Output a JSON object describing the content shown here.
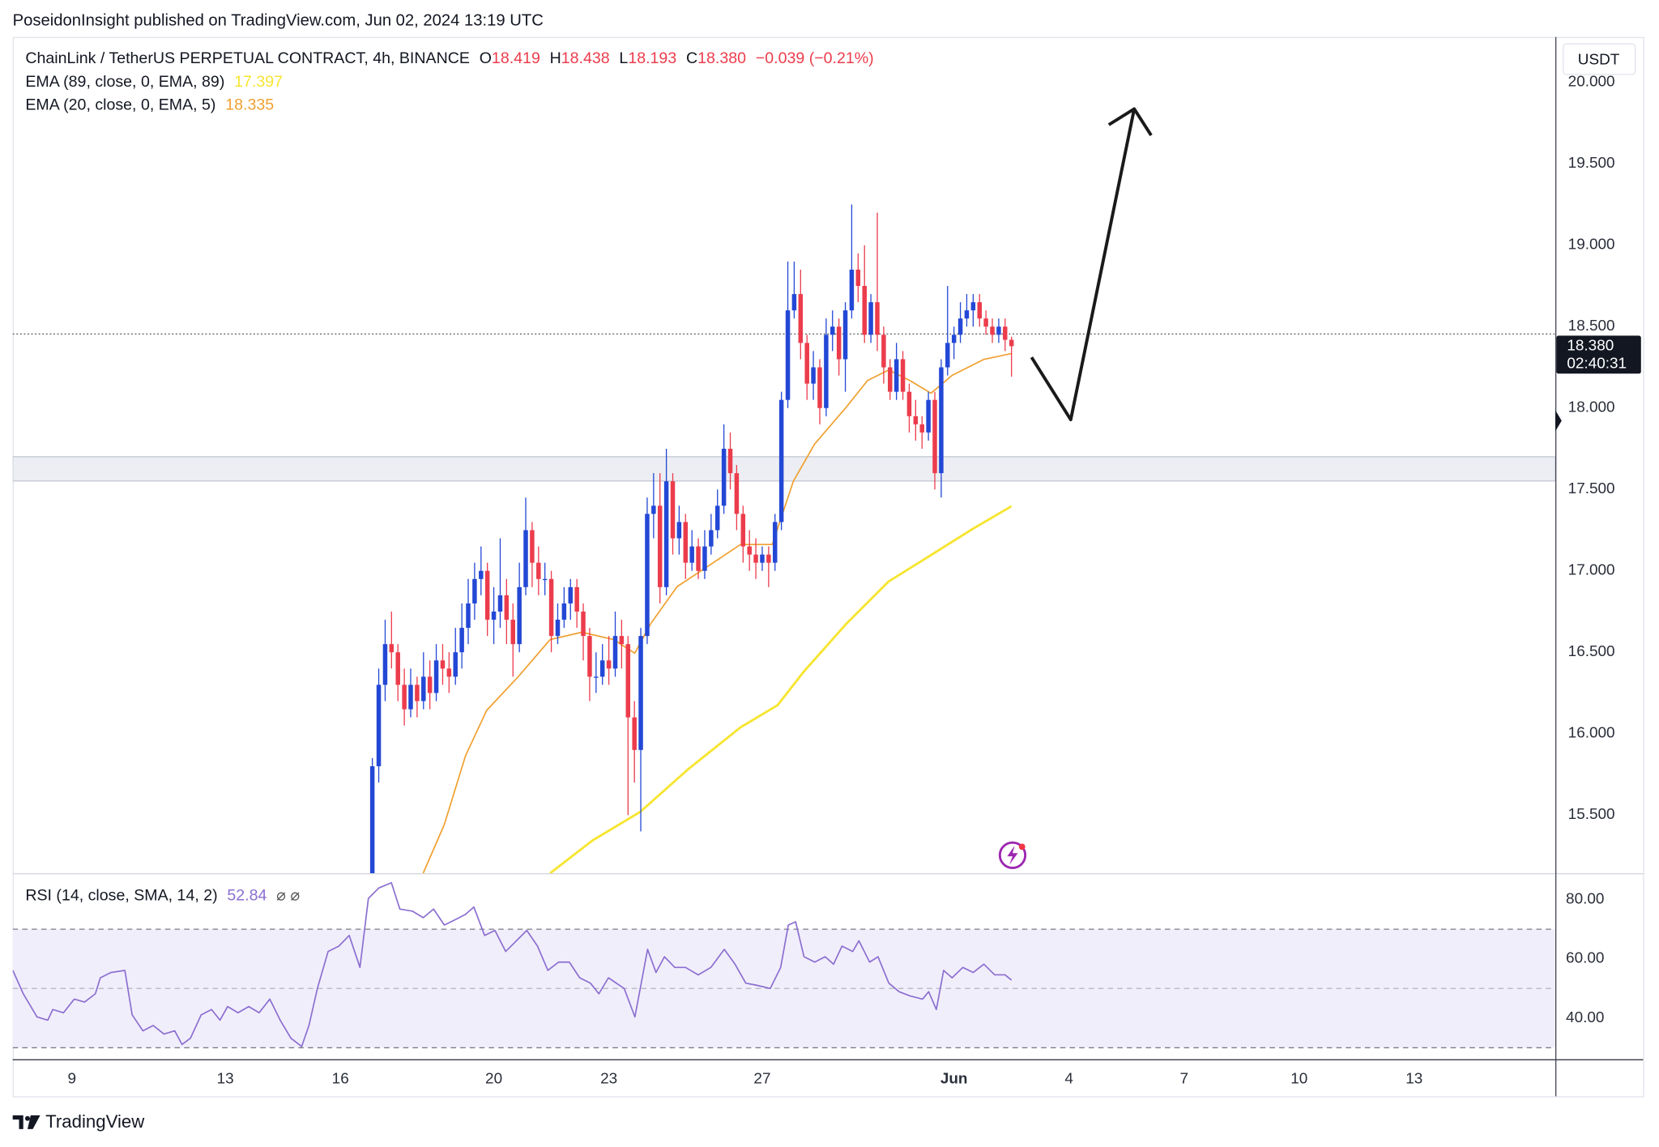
{
  "header": "PoseidonInsight published on TradingView.com, Jun 02, 2024 13:19 UTC",
  "footer": "TradingView",
  "chart_data": {
    "type": "candlestick",
    "title": "ChainLink / TetherUS PERPETUAL CONTRACT, 4h, BINANCE",
    "ohlc_letters": [
      "O",
      "H",
      "L",
      "C"
    ],
    "ohlc_labels": [
      "18.419",
      "18.438",
      "18.193",
      "18.380"
    ],
    "change": "−0.039 (−0.21%)",
    "up_color": "#2348d6",
    "down_color": "#ec3c4c",
    "x": [
      16.833,
      17,
      17.167,
      17.333,
      17.5,
      17.667,
      17.833,
      18,
      18.167,
      18.333,
      18.5,
      18.667,
      18.833,
      19,
      19.167,
      19.333,
      19.5,
      19.667,
      19.833,
      20,
      20.167,
      20.333,
      20.5,
      20.667,
      20.833,
      21,
      21.167,
      21.333,
      21.5,
      21.667,
      21.833,
      22,
      22.167,
      22.333,
      22.5,
      22.667,
      22.833,
      23,
      23.167,
      23.333,
      23.5,
      23.667,
      23.833,
      24,
      24.167,
      24.333,
      24.5,
      24.667,
      24.833,
      25,
      25.167,
      25.333,
      25.5,
      25.667,
      25.833,
      26,
      26.167,
      26.333,
      26.5,
      26.667,
      26.833,
      27,
      27.167,
      27.333,
      27.5,
      27.667,
      27.833,
      28,
      28.167,
      28.333,
      28.5,
      28.667,
      28.833,
      29,
      29.167,
      29.333,
      29.5,
      29.667,
      29.833,
      30,
      30.167,
      30.333,
      30.5,
      30.667,
      30.833,
      31,
      31.167,
      31.333,
      31.5,
      31.667,
      31.833,
      32,
      32.167,
      32.333,
      32.5,
      32.667,
      32.833,
      33,
      33.167,
      33.333,
      33.5
    ],
    "candles": [
      [
        15.1,
        15.85,
        15.05,
        15.8
      ],
      [
        15.8,
        16.4,
        15.7,
        16.3
      ],
      [
        16.3,
        16.7,
        16.2,
        16.55
      ],
      [
        16.55,
        16.75,
        16.4,
        16.5
      ],
      [
        16.5,
        16.55,
        16.2,
        16.3
      ],
      [
        16.3,
        16.4,
        16.05,
        16.15
      ],
      [
        16.15,
        16.4,
        16.1,
        16.3
      ],
      [
        16.3,
        16.35,
        16.1,
        16.2
      ],
      [
        16.2,
        16.5,
        16.15,
        16.35
      ],
      [
        16.35,
        16.45,
        16.15,
        16.25
      ],
      [
        16.25,
        16.55,
        16.2,
        16.45
      ],
      [
        16.45,
        16.55,
        16.3,
        16.4
      ],
      [
        16.4,
        16.5,
        16.25,
        16.35
      ],
      [
        16.35,
        16.65,
        16.3,
        16.5
      ],
      [
        16.5,
        16.8,
        16.4,
        16.65
      ],
      [
        16.65,
        16.95,
        16.55,
        16.8
      ],
      [
        16.8,
        17.05,
        16.7,
        16.95
      ],
      [
        16.95,
        17.15,
        16.85,
        17
      ],
      [
        17,
        17.05,
        16.6,
        16.7
      ],
      [
        16.7,
        16.9,
        16.55,
        16.75
      ],
      [
        16.75,
        17.2,
        16.65,
        16.85
      ],
      [
        16.85,
        16.95,
        16.55,
        16.7
      ],
      [
        16.7,
        16.8,
        16.35,
        16.55
      ],
      [
        16.55,
        17.05,
        16.5,
        16.9
      ],
      [
        16.9,
        17.45,
        16.85,
        17.25
      ],
      [
        17.25,
        17.3,
        16.9,
        17.05
      ],
      [
        17.05,
        17.15,
        16.85,
        16.95
      ],
      [
        16.95,
        17.05,
        16.85,
        16.95
      ],
      [
        16.95,
        17,
        16.5,
        16.6
      ],
      [
        16.6,
        16.8,
        16.55,
        16.7
      ],
      [
        16.7,
        16.9,
        16.65,
        16.8
      ],
      [
        16.8,
        16.95,
        16.7,
        16.9
      ],
      [
        16.9,
        16.95,
        16.65,
        16.75
      ],
      [
        16.75,
        16.8,
        16.45,
        16.6
      ],
      [
        16.6,
        16.65,
        16.2,
        16.35
      ],
      [
        16.35,
        16.5,
        16.25,
        16.35
      ],
      [
        16.35,
        16.55,
        16.3,
        16.45
      ],
      [
        16.45,
        16.6,
        16.3,
        16.4
      ],
      [
        16.4,
        16.75,
        16.35,
        16.6
      ],
      [
        16.6,
        16.7,
        16.4,
        16.55
      ],
      [
        16.55,
        16.6,
        15.5,
        16.1
      ],
      [
        16.1,
        16.2,
        15.7,
        15.9
      ],
      [
        15.9,
        16.65,
        15.4,
        16.6
      ],
      [
        16.6,
        17.45,
        16.55,
        17.35
      ],
      [
        17.35,
        17.6,
        17.2,
        17.4
      ],
      [
        17.4,
        17.6,
        16.8,
        16.9
      ],
      [
        16.9,
        17.75,
        16.85,
        17.55
      ],
      [
        17.55,
        17.6,
        17.1,
        17.2
      ],
      [
        17.2,
        17.4,
        17.1,
        17.3
      ],
      [
        17.3,
        17.35,
        16.95,
        17.05
      ],
      [
        17.05,
        17.25,
        17,
        17.15
      ],
      [
        17.15,
        17.2,
        16.95,
        17
      ],
      [
        17,
        17.25,
        16.95,
        17.15
      ],
      [
        17.15,
        17.35,
        17.1,
        17.25
      ],
      [
        17.25,
        17.5,
        17.2,
        17.4
      ],
      [
        17.4,
        17.9,
        17.35,
        17.75
      ],
      [
        17.75,
        17.85,
        17.5,
        17.6
      ],
      [
        17.6,
        17.65,
        17.25,
        17.35
      ],
      [
        17.35,
        17.4,
        17.05,
        17.15
      ],
      [
        17.15,
        17.25,
        17,
        17.1
      ],
      [
        17.1,
        17.2,
        16.95,
        17.05
      ],
      [
        17.05,
        17.15,
        17,
        17.1
      ],
      [
        17.1,
        17.15,
        16.9,
        17.05
      ],
      [
        17.05,
        17.35,
        17,
        17.3
      ],
      [
        17.3,
        18.1,
        17.25,
        18.05
      ],
      [
        18.05,
        18.9,
        18,
        18.6
      ],
      [
        18.6,
        18.9,
        18.55,
        18.7
      ],
      [
        18.7,
        18.85,
        18.3,
        18.4
      ],
      [
        18.4,
        18.45,
        18.05,
        18.15
      ],
      [
        18.15,
        18.35,
        18.05,
        18.25
      ],
      [
        18.25,
        18.3,
        17.9,
        18
      ],
      [
        18,
        18.55,
        17.95,
        18.45
      ],
      [
        18.45,
        18.6,
        18.35,
        18.5
      ],
      [
        18.5,
        18.55,
        18.2,
        18.3
      ],
      [
        18.3,
        18.65,
        18.1,
        18.6
      ],
      [
        18.6,
        19.25,
        18.55,
        18.85
      ],
      [
        18.85,
        18.95,
        18.65,
        18.75
      ],
      [
        18.75,
        19,
        18.4,
        18.45
      ],
      [
        18.45,
        18.7,
        18.4,
        18.65
      ],
      [
        18.65,
        19.2,
        18.35,
        18.45
      ],
      [
        18.45,
        18.5,
        18.15,
        18.25
      ],
      [
        18.25,
        18.3,
        18.05,
        18.1
      ],
      [
        18.1,
        18.4,
        18.05,
        18.3
      ],
      [
        18.3,
        18.35,
        18.05,
        18.1
      ],
      [
        18.1,
        18.15,
        17.85,
        17.95
      ],
      [
        17.95,
        18.05,
        17.8,
        17.9
      ],
      [
        17.9,
        17.95,
        17.75,
        17.85
      ],
      [
        17.85,
        18.1,
        17.8,
        18.05
      ],
      [
        18.05,
        18.1,
        17.5,
        17.6
      ],
      [
        17.6,
        18.3,
        17.45,
        18.25
      ],
      [
        18.25,
        18.75,
        18.2,
        18.4
      ],
      [
        18.4,
        18.5,
        18.3,
        18.45
      ],
      [
        18.45,
        18.65,
        18.4,
        18.55
      ],
      [
        18.55,
        18.7,
        18.5,
        18.6
      ],
      [
        18.6,
        18.7,
        18.5,
        18.65
      ],
      [
        18.65,
        18.7,
        18.5,
        18.55
      ],
      [
        18.55,
        18.6,
        18.45,
        18.5
      ],
      [
        18.5,
        18.55,
        18.4,
        18.45
      ],
      [
        18.45,
        18.55,
        18.4,
        18.5
      ],
      [
        18.5,
        18.55,
        18.35,
        18.419
      ],
      [
        18.419,
        18.438,
        18.193,
        18.38
      ]
    ],
    "series": [
      {
        "name": "EMA (89, close, 0, EMA, 89)",
        "color": "#f7e531",
        "x": [
          21.469,
          22.572,
          23.814,
          25.055,
          26.434,
          27.4,
          28.09,
          29.193,
          30.297,
          31.4,
          32.503,
          33.5
        ],
        "values": [
          15.143,
          15.344,
          15.519,
          15.779,
          16.039,
          16.175,
          16.383,
          16.675,
          16.935,
          17.097,
          17.26,
          17.397
        ]
      },
      {
        "name": "EMA (20, close, 0, EMA, 5)",
        "color": "#f0a030",
        "x": [
          18.159,
          18.71,
          19.262,
          19.814,
          20.641,
          21.469,
          22.297,
          23.124,
          23.676,
          24.09,
          24.779,
          25.607,
          26.434,
          27.262,
          27.814,
          28.366,
          29.193,
          29.745,
          30.297,
          30.848,
          31.4,
          31.952,
          32.779,
          33.5
        ],
        "values": [
          15.143,
          15.442,
          15.864,
          16.143,
          16.351,
          16.578,
          16.623,
          16.578,
          16.494,
          16.675,
          16.903,
          17.032,
          17.162,
          17.162,
          17.552,
          17.779,
          18.006,
          18.169,
          18.234,
          18.169,
          18.091,
          18.201,
          18.299,
          18.335
        ]
      }
    ],
    "xlim": [
      7.455,
      47.68
    ],
    "xticks": [
      9,
      13,
      16,
      20,
      23,
      27,
      {
        "value": 32,
        "label": "Jun"
      },
      {
        "value": 35,
        "label": "4"
      },
      {
        "value": 38,
        "label": "7"
      },
      {
        "value": 41,
        "label": "10"
      },
      {
        "value": 44,
        "label": "13"
      }
    ],
    "ylim": [
      15.143,
      20.279
    ],
    "yticks": [
      {
        "value": 15.5,
        "label": "15.500"
      },
      {
        "value": 16,
        "label": "16.000"
      },
      {
        "value": 16.5,
        "label": "16.500"
      },
      {
        "value": 17,
        "label": "17.000"
      },
      {
        "value": 17.5,
        "label": "17.500"
      },
      {
        "value": 18,
        "label": "18.000"
      },
      {
        "value": 18.5,
        "label": "18.500"
      },
      {
        "value": 19,
        "label": "19.000"
      },
      {
        "value": 19.5,
        "label": "19.500"
      },
      {
        "value": 20,
        "label": "20.000"
      }
    ],
    "grid": false,
    "zone": [
      17.552,
      17.701
    ],
    "price_line": 18.455,
    "y_unit": "USDT",
    "countdown": "02:40:31",
    "rsi": {
      "name": "RSI (14, close, SMA, 14, 2)",
      "color": "#8b6fd0",
      "flags": "⌀ ⌀",
      "ylim": [
        26.1,
        88.2
      ],
      "yticks": [
        {
          "value": 40,
          "label": "40.00"
        },
        {
          "value": 60,
          "label": "60.00"
        },
        {
          "value": 80,
          "label": "80.00"
        }
      ],
      "bands": [
        30,
        50,
        70
      ],
      "x": [
        7.46,
        7.73,
        8.09,
        8.37,
        8.5,
        8.78,
        9.06,
        9.33,
        9.61,
        9.74,
        10.02,
        10.38,
        10.57,
        10.85,
        11.12,
        11.4,
        11.68,
        11.87,
        12.09,
        12.37,
        12.64,
        12.86,
        13.06,
        13.33,
        13.61,
        13.88,
        14.16,
        14.43,
        14.71,
        14.99,
        15.18,
        15.4,
        15.68,
        15.96,
        16.23,
        16.51,
        16.73,
        17,
        17.33,
        17.55,
        17.88,
        18.16,
        18.43,
        18.71,
        18.99,
        19.26,
        19.48,
        19.76,
        20.03,
        20.31,
        20.59,
        20.86,
        21.14,
        21.41,
        21.69,
        21.97,
        22.24,
        22.52,
        22.74,
        22.99,
        23.4,
        23.68,
        24.01,
        24.23,
        24.45,
        24.72,
        25,
        25.33,
        25.66,
        26.01,
        26.29,
        26.57,
        26.85,
        27.21,
        27.48,
        27.68,
        27.87,
        28.09,
        28.37,
        28.64,
        28.86,
        29.08,
        29.36,
        29.52,
        29.8,
        30.02,
        30.3,
        30.57,
        30.85,
        31.18,
        31.34,
        31.54,
        31.73,
        31.95,
        32.23,
        32.5,
        32.78,
        33.06,
        33.33,
        33.5
      ],
      "values": [
        56.1,
        48.2,
        40.4,
        39.3,
        42.9,
        41.8,
        46.4,
        45.4,
        48.2,
        53.6,
        55.4,
        56.1,
        41.1,
        35.7,
        37.5,
        34.6,
        35.7,
        31.1,
        33.2,
        41.1,
        42.9,
        39.3,
        43.9,
        41.8,
        43.9,
        41.8,
        46.4,
        39.3,
        33.2,
        30.4,
        37.5,
        50,
        62.5,
        64.3,
        67.9,
        57.1,
        80.4,
        83.9,
        85.7,
        76.8,
        76.1,
        73.9,
        76.8,
        71.4,
        73.2,
        75,
        77.5,
        67.9,
        69.6,
        62.5,
        66.1,
        69.6,
        64.3,
        56.1,
        58.9,
        58.9,
        53.6,
        51.8,
        48.2,
        53.6,
        50,
        40.4,
        63.2,
        55.4,
        60.7,
        57.1,
        57.1,
        54.6,
        57.1,
        63.2,
        58.2,
        51.8,
        51.1,
        50,
        57.1,
        71.4,
        72.5,
        60.7,
        58.9,
        60.7,
        58.2,
        64.3,
        62.5,
        66.1,
        58.9,
        60.7,
        51.8,
        48.9,
        47.5,
        46.4,
        48.9,
        42.9,
        56.1,
        53.6,
        57.1,
        55.4,
        58.2,
        54.6,
        54.6,
        52.84
      ]
    }
  }
}
